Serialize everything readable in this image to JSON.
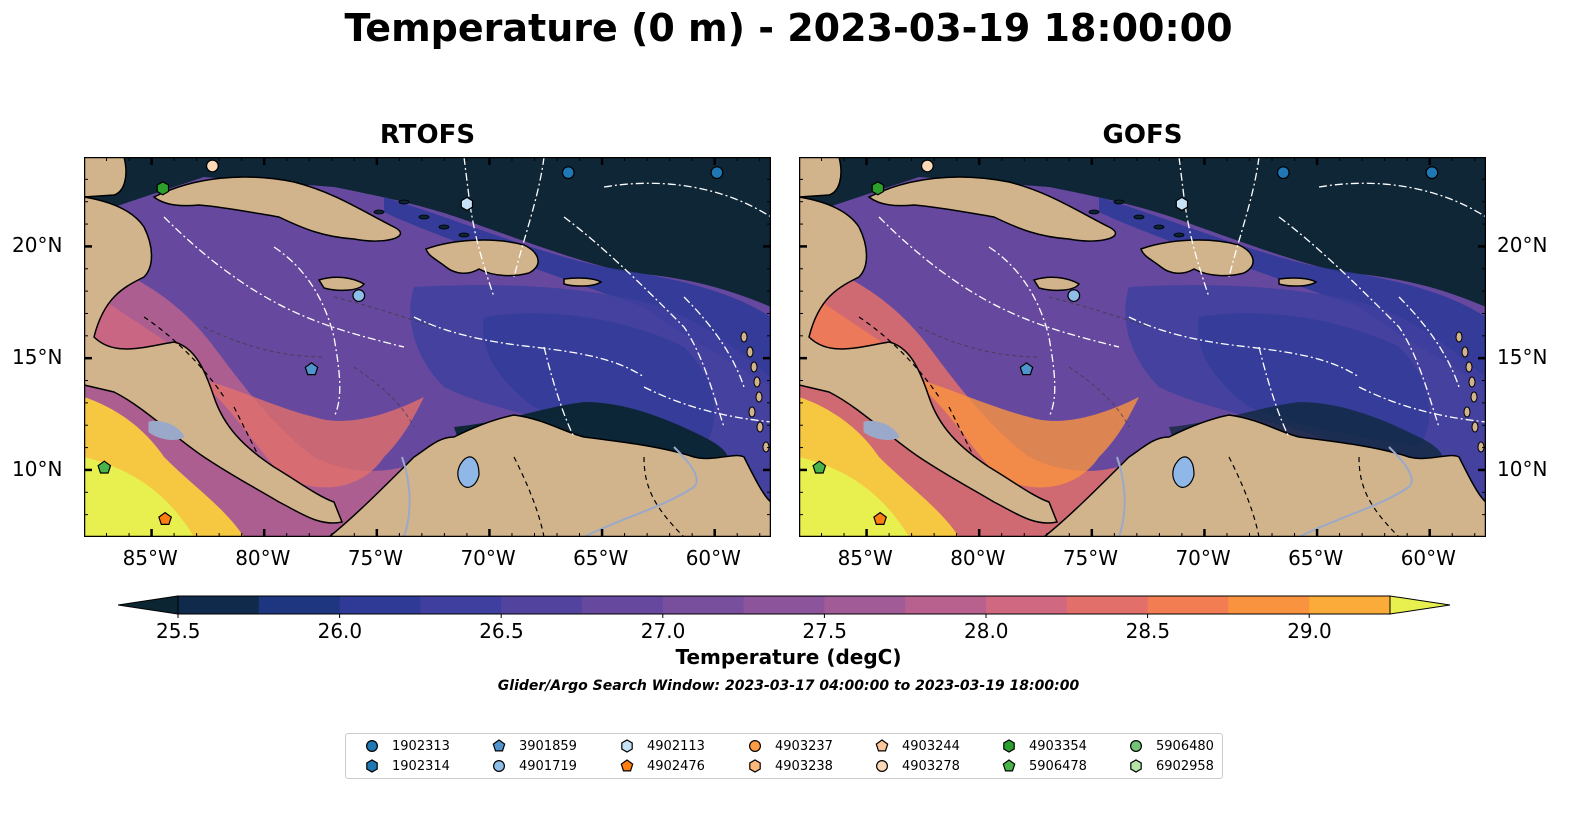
{
  "title": "Temperature (0 m) - 2023-03-19 18:00:00",
  "panels": [
    {
      "title": "RTOFS"
    },
    {
      "title": "GOFS"
    }
  ],
  "axes": {
    "lon_labels": [
      "85°W",
      "80°W",
      "75°W",
      "70°W",
      "65°W",
      "60°W"
    ],
    "lon_values": [
      -85,
      -80,
      -75,
      -70,
      -65,
      -60
    ],
    "lat_labels": [
      "20°N",
      "15°N",
      "10°N"
    ],
    "lat_values": [
      20,
      15,
      10
    ],
    "lon_range": [
      -88,
      -57.5
    ],
    "lat_range": [
      7,
      24
    ]
  },
  "colorbar": {
    "label": "Temperature (degC)",
    "tick_labels": [
      "25.5",
      "26.0",
      "26.5",
      "27.0",
      "27.5",
      "28.0",
      "28.5",
      "29.0"
    ],
    "tick_values": [
      25.5,
      26.0,
      26.5,
      27.0,
      27.5,
      28.0,
      28.5,
      29.0
    ],
    "range": [
      25.5,
      29.25
    ],
    "step": 0.25,
    "extend": "both",
    "colors": [
      "#0b2532",
      "#102a4c",
      "#1e3580",
      "#2f3a97",
      "#3f3f9f",
      "#52439f",
      "#66499e",
      "#784f9d",
      "#8c559b",
      "#a15b96",
      "#b9618e",
      "#cf6880",
      "#e26f6a",
      "#f27d52",
      "#fa933f",
      "#fbab3a",
      "#f6c842",
      "#e8f04f"
    ]
  },
  "search_window": "Glider/Argo Search Window: 2023-03-17 04:00:00 to 2023-03-19 18:00:00",
  "legend": {
    "items": [
      {
        "id": "1902313",
        "marker": "circle",
        "color": "#1f77b4"
      },
      {
        "id": "1902314",
        "marker": "hexagon",
        "color": "#1f77b4"
      },
      {
        "id": "3901859",
        "marker": "pentagon",
        "color": "#4f94cd"
      },
      {
        "id": "4901719",
        "marker": "circle",
        "color": "#8fbfe8"
      },
      {
        "id": "4902113",
        "marker": "hexagon",
        "color": "#c6e2f7"
      },
      {
        "id": "4902476",
        "marker": "pentagon",
        "color": "#ff7f0e"
      },
      {
        "id": "4903237",
        "marker": "circle",
        "color": "#fd9c45"
      },
      {
        "id": "4903238",
        "marker": "hexagon",
        "color": "#fdb77a"
      },
      {
        "id": "4903244",
        "marker": "pentagon",
        "color": "#fdc69a"
      },
      {
        "id": "4903278",
        "marker": "circle",
        "color": "#fdd9b8"
      },
      {
        "id": "4903354",
        "marker": "hexagon",
        "color": "#2ca02c"
      },
      {
        "id": "5906478",
        "marker": "pentagon",
        "color": "#49b449"
      },
      {
        "id": "5906480",
        "marker": "circle",
        "color": "#74c476"
      },
      {
        "id": "6902958",
        "marker": "hexagon",
        "color": "#b6e4a6"
      }
    ]
  },
  "floats": [
    {
      "lon": -84.5,
      "lat": 22.6,
      "marker": "hexagon",
      "color": "#2ca02c"
    },
    {
      "lon": -82.3,
      "lat": 23.6,
      "marker": "circle",
      "color": "#fdd9b8"
    },
    {
      "lon": -66.5,
      "lat": 23.3,
      "marker": "circle",
      "color": "#1f77b4"
    },
    {
      "lon": -59.9,
      "lat": 23.3,
      "marker": "circle",
      "color": "#1f77b4"
    },
    {
      "lon": -71.0,
      "lat": 21.9,
      "marker": "hexagon",
      "color": "#c6e2f7"
    },
    {
      "lon": -75.8,
      "lat": 17.8,
      "marker": "circle",
      "color": "#8fbfe8"
    },
    {
      "lon": -77.9,
      "lat": 14.5,
      "marker": "pentagon",
      "color": "#4f94cd"
    },
    {
      "lon": -87.1,
      "lat": 10.1,
      "marker": "pentagon",
      "color": "#49b449"
    },
    {
      "lon": -84.4,
      "lat": 7.8,
      "marker": "pentagon",
      "color": "#ff7f0e"
    }
  ],
  "land_color": "#d2b48c",
  "water_color": "#8fb8e8"
}
